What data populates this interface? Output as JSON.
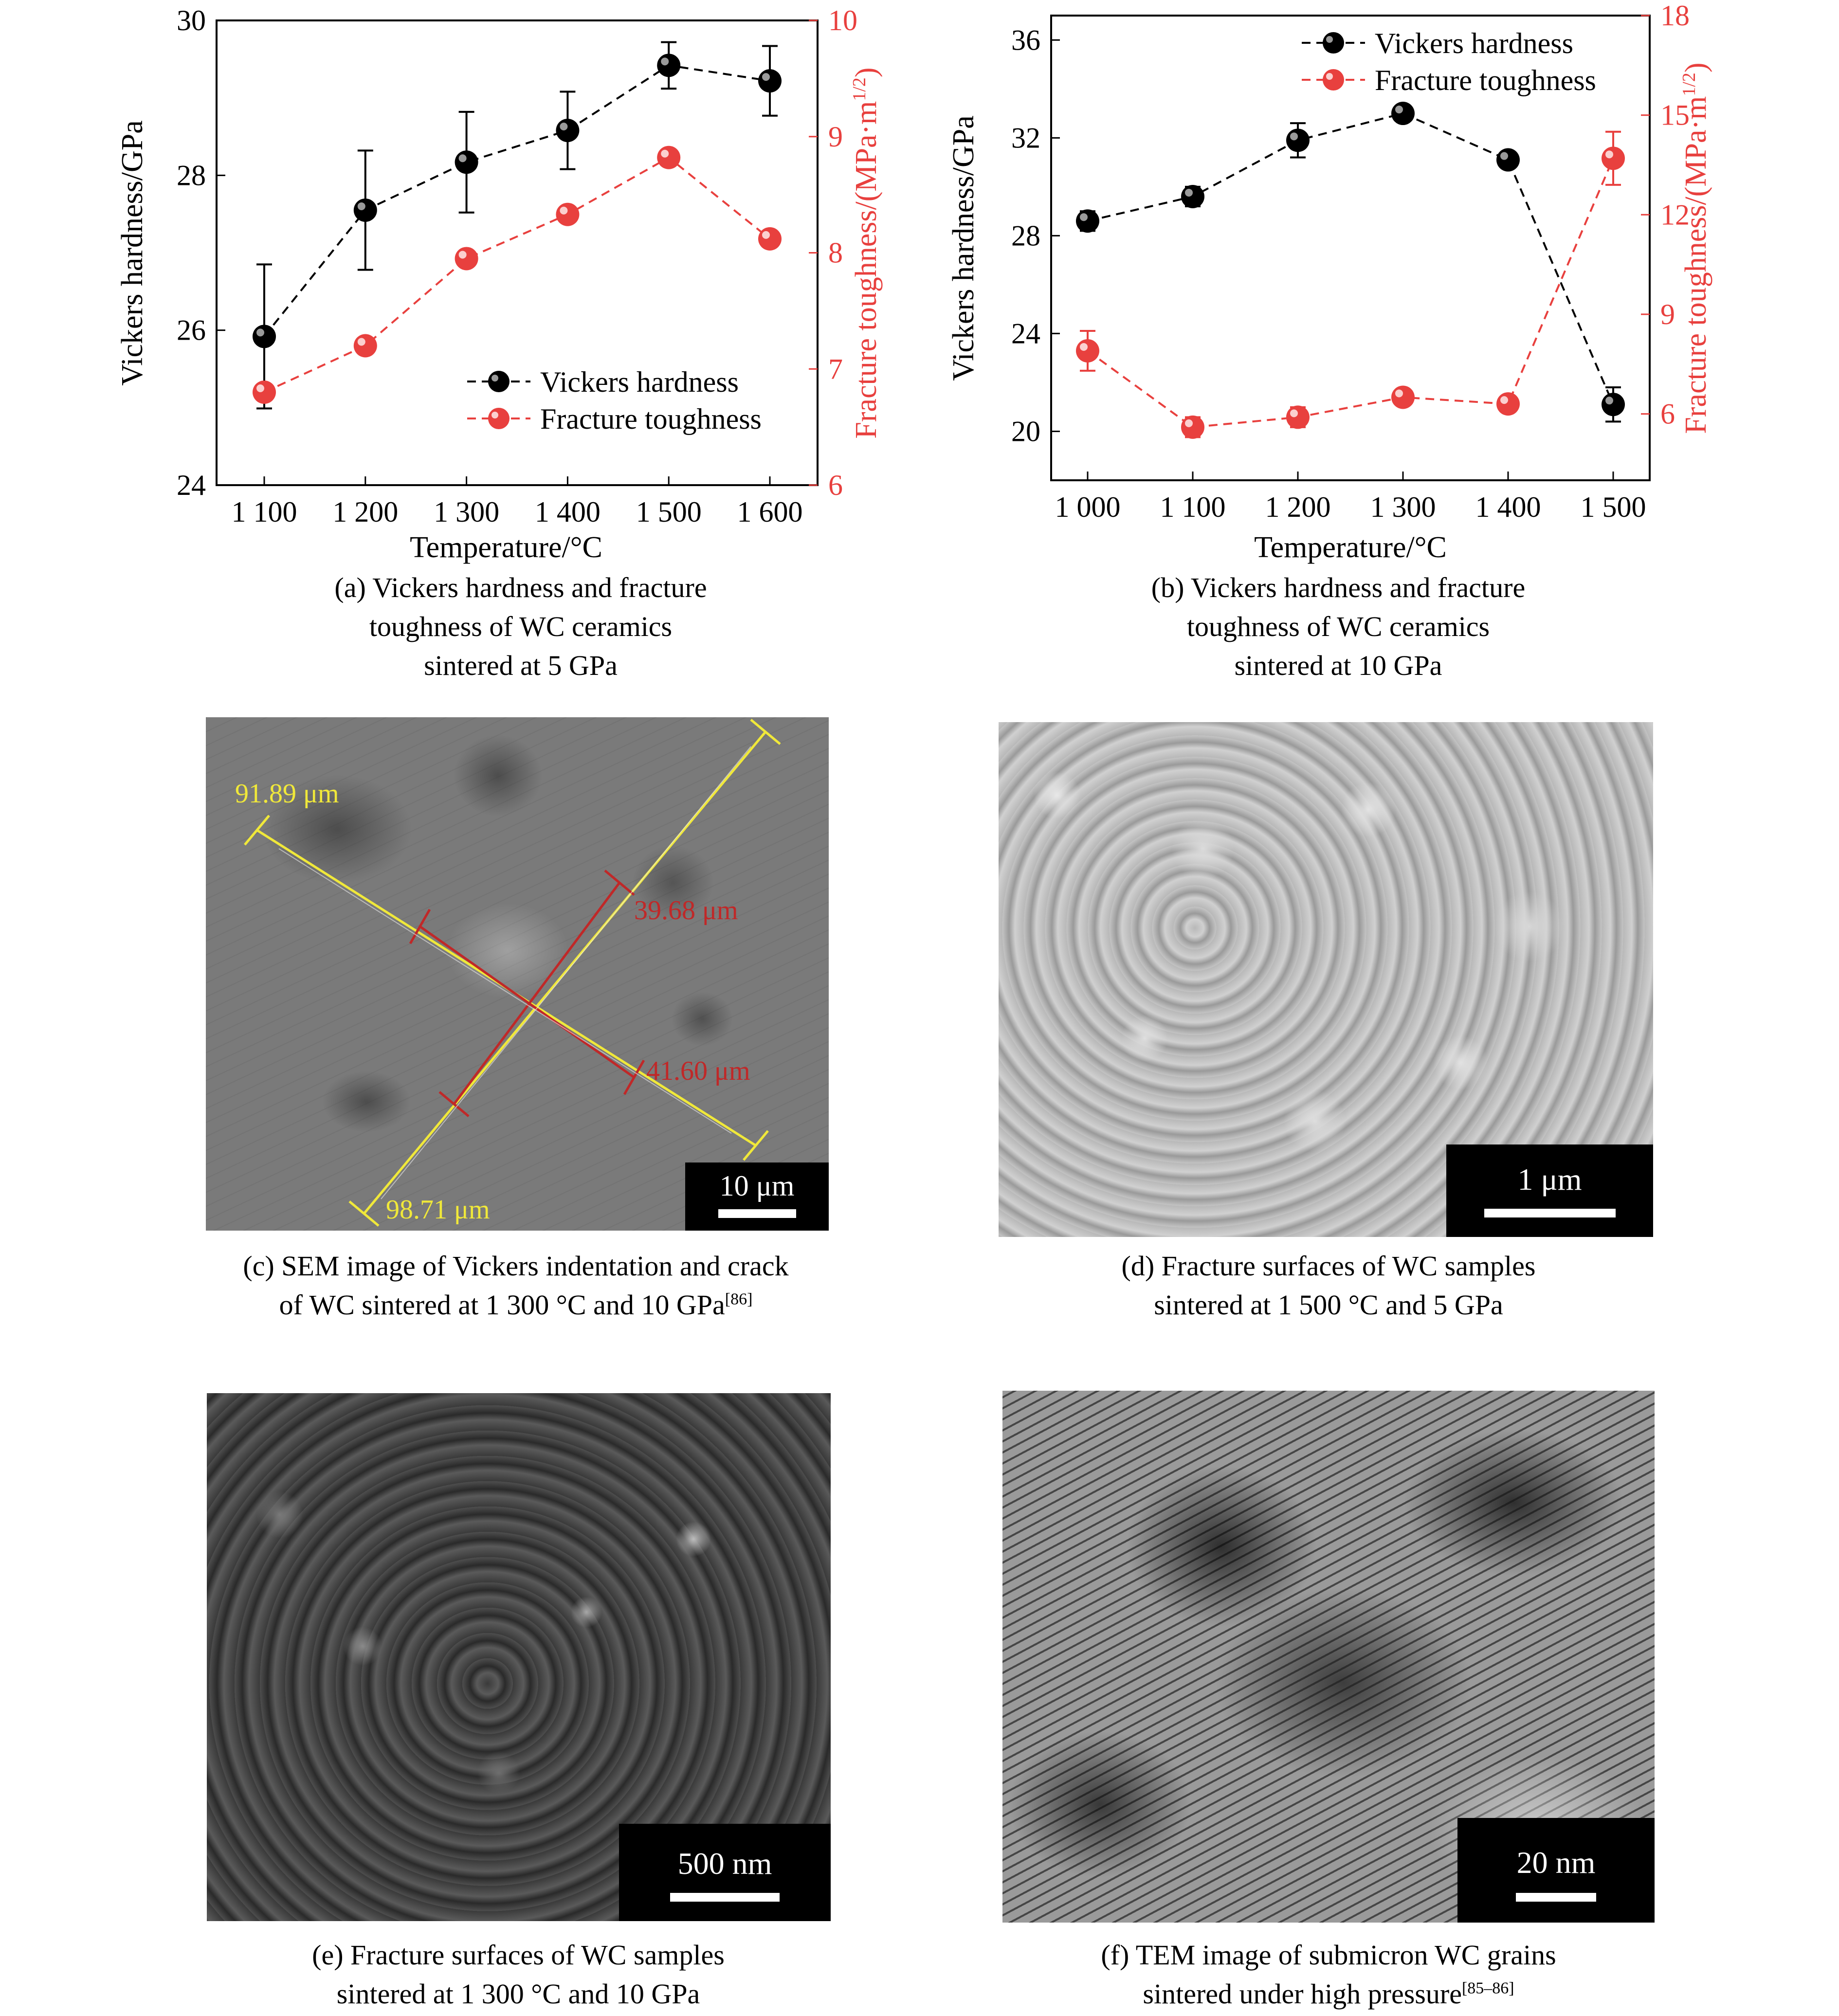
{
  "chart_data": [
    {
      "type": "line",
      "x": [
        "1 100",
        "1 200",
        "1 300",
        "1 400",
        "1 500",
        "1 600"
      ],
      "xlabel": "Temperature/°C",
      "ylabel": "Vickers hardness/GPa",
      "y2label": "Fracture toughness/(MPa·m",
      "y2label_sup": "1/2",
      "y2label_end": ")",
      "ylim": [
        24,
        30
      ],
      "y2lim": [
        6,
        10
      ],
      "yticks": [
        "24",
        "26",
        "28",
        "30"
      ],
      "y2ticks": [
        "6",
        "7",
        "8",
        "9",
        "10"
      ],
      "legend_position": "lower-right",
      "series": [
        {
          "name": "Vickers hardness",
          "axis": "left",
          "color": "#000000",
          "values": [
            25.92,
            27.55,
            28.17,
            28.58,
            29.42,
            29.22
          ],
          "error": [
            0.93,
            0.77,
            0.65,
            0.5,
            0.3,
            0.45
          ]
        },
        {
          "name": "Fracture toughness",
          "axis": "right",
          "color": "#e8403e",
          "values": [
            6.8,
            7.2,
            7.95,
            8.33,
            8.82,
            8.12
          ]
        }
      ]
    },
    {
      "type": "line",
      "x": [
        "1 000",
        "1 100",
        "1 200",
        "1 300",
        "1 400",
        "1 500"
      ],
      "xlabel": "Temperature/°C",
      "ylabel": "Vickers hardness/GPa",
      "y2label": "Fracture toughness/(MPa·m",
      "y2label_sup": "1/2",
      "y2label_end": ")",
      "ylim": [
        18,
        37
      ],
      "y2lim": [
        4,
        18
      ],
      "yticks": [
        "20",
        "24",
        "28",
        "32",
        "36"
      ],
      "y2ticks": [
        "6",
        "9",
        "12",
        "15",
        "18"
      ],
      "legend_position": "top-right",
      "series": [
        {
          "name": "Vickers hardness",
          "axis": "left",
          "color": "#000000",
          "values": [
            28.6,
            29.6,
            31.9,
            33.0,
            31.1,
            21.1
          ],
          "error": [
            0.4,
            0.4,
            0.7,
            0.3,
            0.3,
            0.7
          ]
        },
        {
          "name": "Fracture toughness",
          "axis": "right",
          "color": "#e8403e",
          "values": [
            7.9,
            5.6,
            5.9,
            6.5,
            6.3,
            13.7
          ],
          "error": [
            0.6,
            0.3,
            0.3,
            0.2,
            0.2,
            0.8
          ]
        }
      ]
    }
  ],
  "captions": {
    "a": [
      "(a) Vickers hardness and fracture",
      "toughness of WC ceramics",
      "sintered at 5 GPa"
    ],
    "b": [
      "(b) Vickers hardness and fracture",
      "toughness of WC ceramics",
      "sintered at 10 GPa"
    ],
    "c": [
      "(c) SEM image of Vickers indentation and crack",
      "of WC sintered at 1 300 °C and 10 GPa"
    ],
    "c_ref": "[86]",
    "d": [
      "(d) Fracture surfaces of WC samples",
      "sintered at 1 500 °C and 5 GPa"
    ],
    "e": [
      "(e) Fracture surfaces of WC samples",
      "sintered at 1 300 °C and 10 GPa"
    ],
    "f": [
      "(f) TEM image of submicron WC grains",
      "sintered under high pressure"
    ],
    "f_ref": "[85–86]"
  },
  "panel_c": {
    "measure_1": "91.89 μm",
    "measure_2": "39.68 μm",
    "measure_3": "41.60 μm",
    "measure_4": "98.71 μm",
    "scale": "10 μm"
  },
  "panel_d": {
    "scale": "1 μm"
  },
  "panel_e": {
    "scale": "500 nm"
  },
  "panel_f": {
    "scale": "20 nm"
  },
  "colors": {
    "red": "#e8403e",
    "yellow": "#f0e83a",
    "crack_red": "#c02828"
  }
}
